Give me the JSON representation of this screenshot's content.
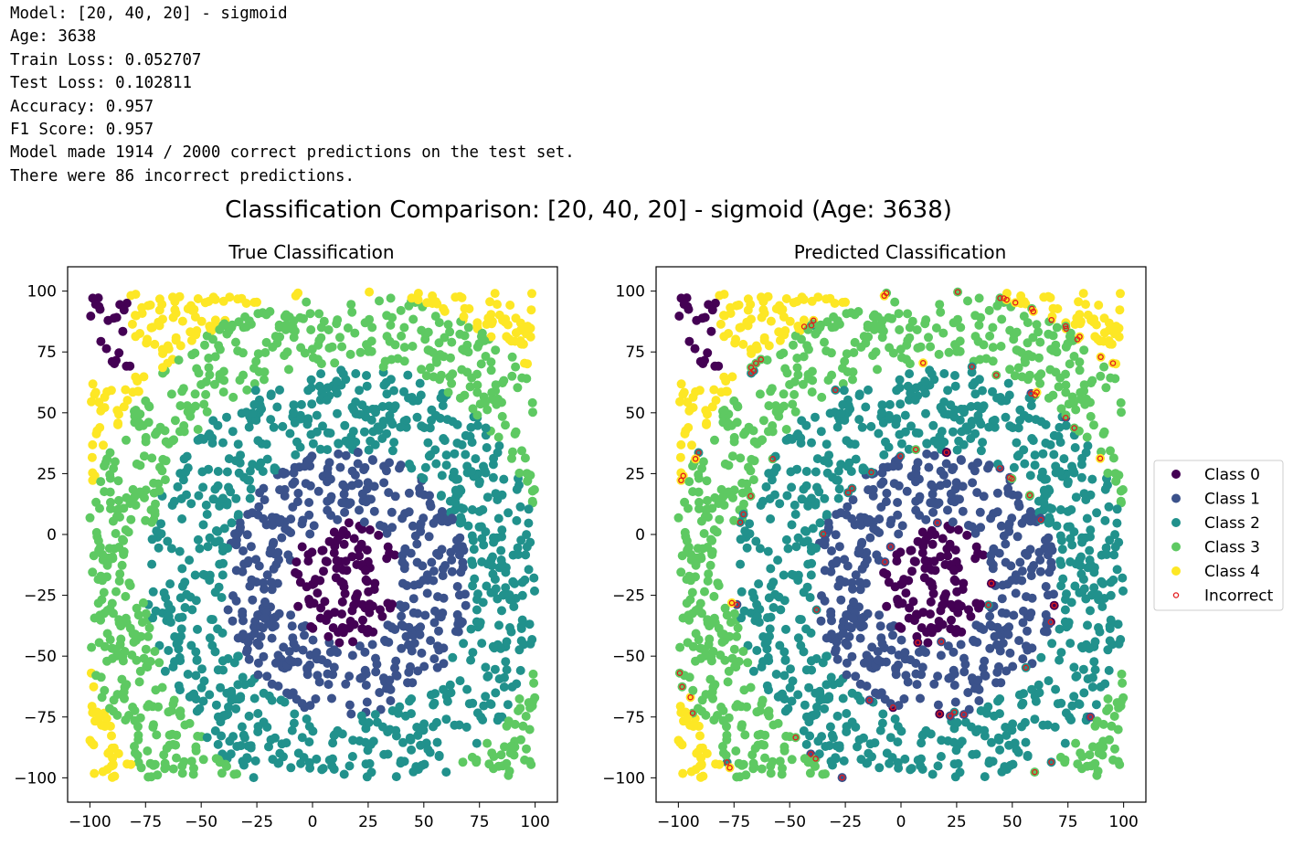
{
  "log_lines": [
    "Model: [20, 40, 20] - sigmoid",
    "Age: 3638",
    "Train Loss: 0.052707",
    "Test Loss: 0.102811",
    "Accuracy: 0.957",
    "F1 Score: 0.957",
    "Model made 1914 / 2000 correct predictions on the test set.",
    "There were 86 incorrect predictions."
  ],
  "colors": {
    "class0": "#440154",
    "class1": "#3b528b",
    "class2": "#21918c",
    "class3": "#5ec962",
    "class4": "#fde725",
    "incorrect": "#e31a1c"
  },
  "chart_data": {
    "type": "scatter",
    "suptitle": "Classification Comparison: [20, 40, 20] - sigmoid (Age: 3638)",
    "xlim": [
      -110,
      110
    ],
    "ylim": [
      -110,
      110
    ],
    "xticks": [
      -100,
      -75,
      -50,
      -25,
      0,
      25,
      50,
      75,
      100
    ],
    "yticks": [
      -100,
      -75,
      -50,
      -25,
      0,
      25,
      50,
      75,
      100
    ],
    "xtick_labels": [
      "−100",
      "−75",
      "−50",
      "−25",
      "0",
      "25",
      "50",
      "75",
      "100"
    ],
    "ytick_labels": [
      "−100",
      "−75",
      "−50",
      "−25",
      "0",
      "25",
      "50",
      "75",
      "100"
    ],
    "grid": false,
    "legend_placement": "right of second panel",
    "n_points": 2000,
    "n_incorrect": 86,
    "panels": [
      {
        "title": "True Classification",
        "shows": "true labels"
      },
      {
        "title": "Predicted Classification",
        "shows": "predicted labels with incorrect predictions marked"
      }
    ],
    "legend": [
      {
        "label": "Class 0",
        "color": "#440154",
        "marker": "dot"
      },
      {
        "label": "Class 1",
        "color": "#3b528b",
        "marker": "dot"
      },
      {
        "label": "Class 2",
        "color": "#21918c",
        "marker": "dot"
      },
      {
        "label": "Class 3",
        "color": "#5ec962",
        "marker": "dot"
      },
      {
        "label": "Class 4",
        "color": "#fde725",
        "marker": "dot"
      },
      {
        "label": "Incorrect",
        "color": "#e31a1c",
        "marker": "ring"
      }
    ],
    "class_regions": [
      {
        "class": 0,
        "region": "center disk radius ~25 around (15,-20); top-left cluster near (-95,90)"
      },
      {
        "class": 1,
        "region": "ring radius 25-55 around (15,-20)"
      },
      {
        "class": 2,
        "region": "ring radius 55-90 around (15,-20)"
      },
      {
        "class": 3,
        "region": "ring radius 90-120 around (15,-20)"
      },
      {
        "class": 4,
        "region": "beyond radius 120 (corners)"
      }
    ]
  }
}
